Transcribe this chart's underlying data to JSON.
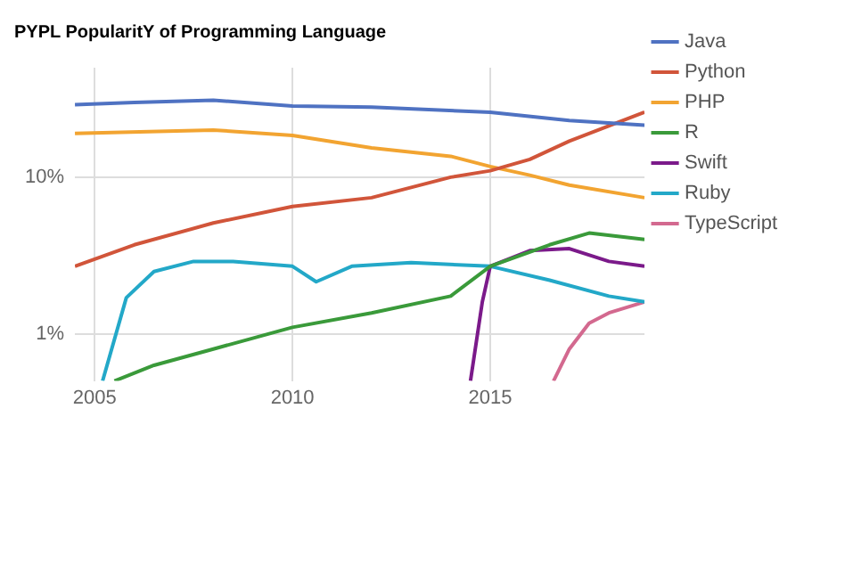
{
  "chart_data": {
    "type": "line",
    "title": "PYPL PopularitY of Programming Language",
    "log": "y",
    "grid": true,
    "legend": "right",
    "marker": "none",
    "line_style": "solid",
    "xlim": [
      2004.5,
      2018.9
    ],
    "xticks": [
      2005,
      2010,
      2015
    ],
    "ylim": [
      0.5,
      50
    ],
    "yticks": [
      {
        "value": 1,
        "label": "1%"
      },
      {
        "value": 10,
        "label": "10%"
      }
    ],
    "series": [
      {
        "name": "Java",
        "color": "#4f72c2",
        "x": [
          2004.5,
          2006,
          2008,
          2010,
          2012,
          2015,
          2017,
          2018.9
        ],
        "values": [
          29,
          30,
          31,
          28.5,
          28,
          26,
          23,
          21.5
        ]
      },
      {
        "name": "Python",
        "color": "#d1553a",
        "x": [
          2004.5,
          2006,
          2008,
          2010,
          2012,
          2014,
          2015,
          2016,
          2017,
          2018.9
        ],
        "values": [
          2.7,
          3.7,
          5.1,
          6.5,
          7.4,
          10,
          11,
          13,
          17,
          26
        ]
      },
      {
        "name": "PHP",
        "color": "#f2a431",
        "x": [
          2004.5,
          2008,
          2010,
          2012,
          2014,
          2015,
          2016,
          2017,
          2018.9
        ],
        "values": [
          19,
          20,
          18.5,
          15.4,
          13.6,
          11.7,
          10.3,
          8.9,
          7.4
        ]
      },
      {
        "name": "R",
        "color": "#3a9a3a",
        "x": [
          2005.5,
          2006.5,
          2008,
          2010,
          2012,
          2014,
          2015,
          2016.5,
          2017.5,
          2018.9
        ],
        "values": [
          0.5,
          0.63,
          0.8,
          1.1,
          1.36,
          1.74,
          2.7,
          3.7,
          4.4,
          4
        ]
      },
      {
        "name": "Swift",
        "color": "#7b1a8a",
        "x": [
          2014.5,
          2014.8,
          2015,
          2016,
          2017,
          2018,
          2018.9
        ],
        "values": [
          0.5,
          1.6,
          2.7,
          3.4,
          3.5,
          2.9,
          2.7
        ]
      },
      {
        "name": "Ruby",
        "color": "#23a8c8",
        "x": [
          2005.2,
          2005.8,
          2006.5,
          2007.5,
          2008.5,
          2010,
          2010.6,
          2011.5,
          2013,
          2015,
          2016.5,
          2018,
          2018.9
        ],
        "values": [
          0.5,
          1.7,
          2.5,
          2.9,
          2.9,
          2.7,
          2.15,
          2.7,
          2.85,
          2.7,
          2.2,
          1.74,
          1.6
        ]
      },
      {
        "name": "TypeScript",
        "color": "#d3698f",
        "x": [
          2016.6,
          2017,
          2017.5,
          2018,
          2018.9
        ],
        "values": [
          0.5,
          0.8,
          1.17,
          1.36,
          1.6
        ]
      }
    ]
  }
}
